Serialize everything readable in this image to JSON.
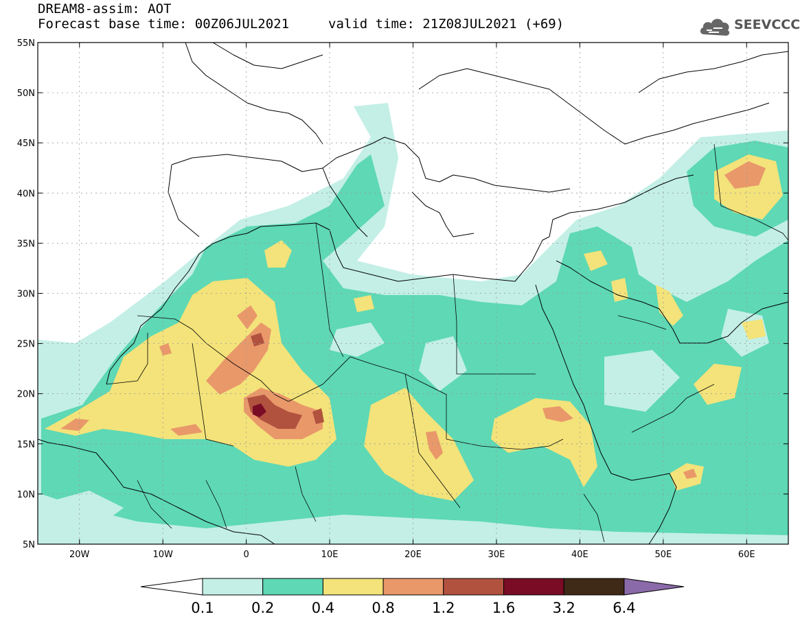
{
  "header": {
    "title": "DREAM8-assim: AOT",
    "base_time": "Forecast base time: 00Z06JUL2021",
    "valid_time": "valid time: 21Z08JUL2021 (+69)"
  },
  "logo": {
    "text": "SEEVCCC",
    "icon": "cloud-icon"
  },
  "map": {
    "lat_labels": [
      "55N",
      "50N",
      "45N",
      "40N",
      "35N",
      "30N",
      "25N",
      "20N",
      "15N",
      "10N",
      "5N"
    ],
    "lat_values": [
      55,
      50,
      45,
      40,
      35,
      30,
      25,
      20,
      15,
      10,
      5
    ],
    "lon_labels": [
      "20W",
      "10W",
      "0",
      "10E",
      "20E",
      "30E",
      "40E",
      "50E",
      "60E"
    ],
    "lon_values": [
      -20,
      -10,
      0,
      10,
      20,
      30,
      40,
      50,
      60
    ],
    "lon_range": [
      -25,
      65
    ],
    "lat_range": [
      5,
      55
    ],
    "grid": "dotted"
  },
  "colorbar": {
    "labels": [
      "0.1",
      "0.2",
      "0.4",
      "0.8",
      "1.2",
      "1.6",
      "3.2",
      "6.4"
    ],
    "colors": [
      "#ffffff",
      "#c3efe6",
      "#5ed8b5",
      "#f3e37a",
      "#e9986a",
      "#b1523f",
      "#7a0c25",
      "#3f2a17",
      "#8a6aa9"
    ]
  }
}
